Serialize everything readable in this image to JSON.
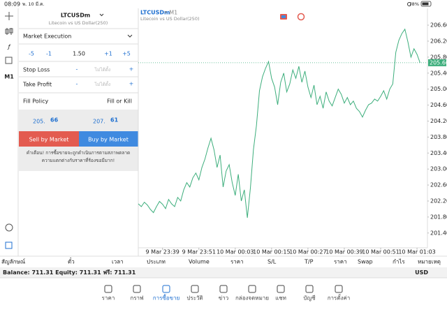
{
  "status_bar": {
    "time": "08:09",
    "date": "พ. 10 มี.ค.",
    "battery": "78%"
  },
  "toolbar": {
    "timeframe": "M1"
  },
  "order_panel": {
    "symbol": "LTCUSDm",
    "description": "Litecoin vs US Dollar(250)",
    "execution": "Market Execution",
    "volume_steps": [
      "-5",
      "-1",
      "1.50",
      "+1",
      "+5"
    ],
    "stop_loss": {
      "label": "Stop Loss",
      "minus": "-",
      "value": "ไม่ได้ตั้ง",
      "plus": "+"
    },
    "take_profit": {
      "label": "Take Profit",
      "minus": "-",
      "value": "ไม่ได้ตั้ง",
      "plus": "+"
    },
    "fill_policy": {
      "label": "Fill Policy",
      "value": "Fill or Kill"
    },
    "bid": {
      "main": "205.",
      "big": "66"
    },
    "ask": {
      "main": "207.",
      "big": "61"
    },
    "sell_button": "Sell by Market",
    "buy_button": "Buy by Market",
    "warning": [
      "คำเตือน! การซื้อขายจะถูกดำเนินการตามสภาพตลาด",
      "ความแตกต่างกับราคาที่ร้องขอมีมาก!"
    ]
  },
  "chart_data": {
    "type": "line",
    "title": "LTCUSDm",
    "period": "• M1",
    "subtitle": "Litecoin vs US Dollar(250)",
    "x": [
      "9 Mar 23:31",
      "9 Mar 23:32",
      "9 Mar 23:33",
      "9 Mar 23:34",
      "9 Mar 23:35",
      "9 Mar 23:36",
      "9 Mar 23:37",
      "9 Mar 23:38",
      "9 Mar 23:39",
      "9 Mar 23:40",
      "9 Mar 23:41",
      "9 Mar 23:42",
      "9 Mar 23:43",
      "9 Mar 23:44",
      "9 Mar 23:45",
      "9 Mar 23:46",
      "9 Mar 23:47",
      "9 Mar 23:48",
      "9 Mar 23:49",
      "9 Mar 23:50",
      "9 Mar 23:51",
      "9 Mar 23:52",
      "9 Mar 23:53",
      "9 Mar 23:54",
      "9 Mar 23:55",
      "9 Mar 23:56",
      "9 Mar 23:57",
      "9 Mar 23:58",
      "9 Mar 23:59",
      "10 Mar 00:00",
      "10 Mar 00:01",
      "10 Mar 00:02",
      "10 Mar 00:03",
      "10 Mar 00:04",
      "10 Mar 00:05",
      "10 Mar 00:06",
      "10 Mar 00:07",
      "10 Mar 00:08",
      "10 Mar 00:09",
      "10 Mar 00:10",
      "10 Mar 00:11",
      "10 Mar 00:12",
      "10 Mar 00:13",
      "10 Mar 00:14",
      "10 Mar 00:15",
      "10 Mar 00:16",
      "10 Mar 00:17",
      "10 Mar 00:18",
      "10 Mar 00:19",
      "10 Mar 00:20",
      "10 Mar 00:21",
      "10 Mar 00:22",
      "10 Mar 00:23",
      "10 Mar 00:24",
      "10 Mar 00:25",
      "10 Mar 00:26",
      "10 Mar 00:27",
      "10 Mar 00:28",
      "10 Mar 00:29",
      "10 Mar 00:30",
      "10 Mar 00:31",
      "10 Mar 00:32",
      "10 Mar 00:33",
      "10 Mar 00:34",
      "10 Mar 00:35",
      "10 Mar 00:36",
      "10 Mar 00:37",
      "10 Mar 00:38",
      "10 Mar 00:39",
      "10 Mar 00:40",
      "10 Mar 00:41",
      "10 Mar 00:42",
      "10 Mar 00:43",
      "10 Mar 00:44",
      "10 Mar 00:45",
      "10 Mar 00:46",
      "10 Mar 00:47",
      "10 Mar 00:48",
      "10 Mar 00:49",
      "10 Mar 00:50",
      "10 Mar 00:51",
      "10 Mar 00:52",
      "10 Mar 00:53",
      "10 Mar 00:54",
      "10 Mar 00:55",
      "10 Mar 00:56",
      "10 Mar 00:57",
      "10 Mar 00:58",
      "10 Mar 00:59",
      "10 Mar 01:00",
      "10 Mar 01:01",
      "10 Mar 01:02",
      "10 Mar 01:03",
      "10 Mar 01:04"
    ],
    "values": [
      202.13,
      202.06,
      202.17,
      202.1,
      201.99,
      201.91,
      202.06,
      202.19,
      202.12,
      202.01,
      202.24,
      202.13,
      202.06,
      202.29,
      202.2,
      202.48,
      202.66,
      202.55,
      202.78,
      202.9,
      202.73,
      203.04,
      203.25,
      203.53,
      203.77,
      203.48,
      203.04,
      203.35,
      202.55,
      202.95,
      203.11,
      202.66,
      202.34,
      202.87,
      202.2,
      202.48,
      201.78,
      202.52,
      203.48,
      204.09,
      204.96,
      205.31,
      205.52,
      205.69,
      205.27,
      205.05,
      204.61,
      205.17,
      205.4,
      204.93,
      205.13,
      205.48,
      205.27,
      205.57,
      205.17,
      205.45,
      205.05,
      204.79,
      205.1,
      204.61,
      204.82,
      204.52,
      204.93,
      204.7,
      204.58,
      204.79,
      205.0,
      204.87,
      204.65,
      204.79,
      204.61,
      204.7,
      204.52,
      204.44,
      204.3,
      204.47,
      204.61,
      204.65,
      204.75,
      204.7,
      204.82,
      204.96,
      204.75,
      205.0,
      205.13,
      205.92,
      206.22,
      206.39,
      206.5,
      206.18,
      205.8,
      206.01,
      205.87,
      205.66
    ],
    "color": "#3dae7c",
    "ylim": [
      201.03,
      207.02
    ],
    "yticks": [
      {
        "value": 201.4,
        "label": "201.40"
      },
      {
        "value": 201.8,
        "label": "201.80"
      },
      {
        "value": 202.2,
        "label": "202.20"
      },
      {
        "value": 202.6,
        "label": "202.60"
      },
      {
        "value": 203.0,
        "label": "203.00"
      },
      {
        "value": 203.4,
        "label": "203.40"
      },
      {
        "value": 203.8,
        "label": "203.80"
      },
      {
        "value": 204.2,
        "label": "204.20"
      },
      {
        "value": 204.6,
        "label": "204.60"
      },
      {
        "value": 205.0,
        "label": "205.00"
      },
      {
        "value": 205.4,
        "label": "205.40"
      },
      {
        "value": 205.8,
        "label": "205.80"
      },
      {
        "value": 206.2,
        "label": "206.20"
      },
      {
        "value": 206.6,
        "label": "206.60"
      }
    ],
    "xticks": [
      "9 Mar 23:39",
      "9 Mar 23:51",
      "10 Mar 00:03",
      "10 Mar 00:15",
      "10 Mar 00:27",
      "10 Mar 00:39",
      "10 Mar 00:51",
      "10 Mar 01:03"
    ],
    "current_price": 205.66,
    "grid": false
  },
  "trade_table": {
    "columns": [
      "สัญลักษณ์",
      "ตั๋ว",
      "เวลา",
      "ประเภท",
      "Volume",
      "ราคา",
      "S/L",
      "T/P",
      "ราคา",
      "Swap",
      "กำไร",
      "หมายเหตุ"
    ],
    "balance": "Balance: 711.31 Equity: 711.31 ฟรี: 711.31",
    "currency": "USD"
  },
  "nav": {
    "items": [
      "ราคา",
      "กราฟ",
      "การซื้อขาย",
      "ประวัติ",
      "ข่าว",
      "กล่องจดหมาย",
      "แชท",
      "บัญชี",
      "การตั้งค่า"
    ],
    "active": 2
  }
}
